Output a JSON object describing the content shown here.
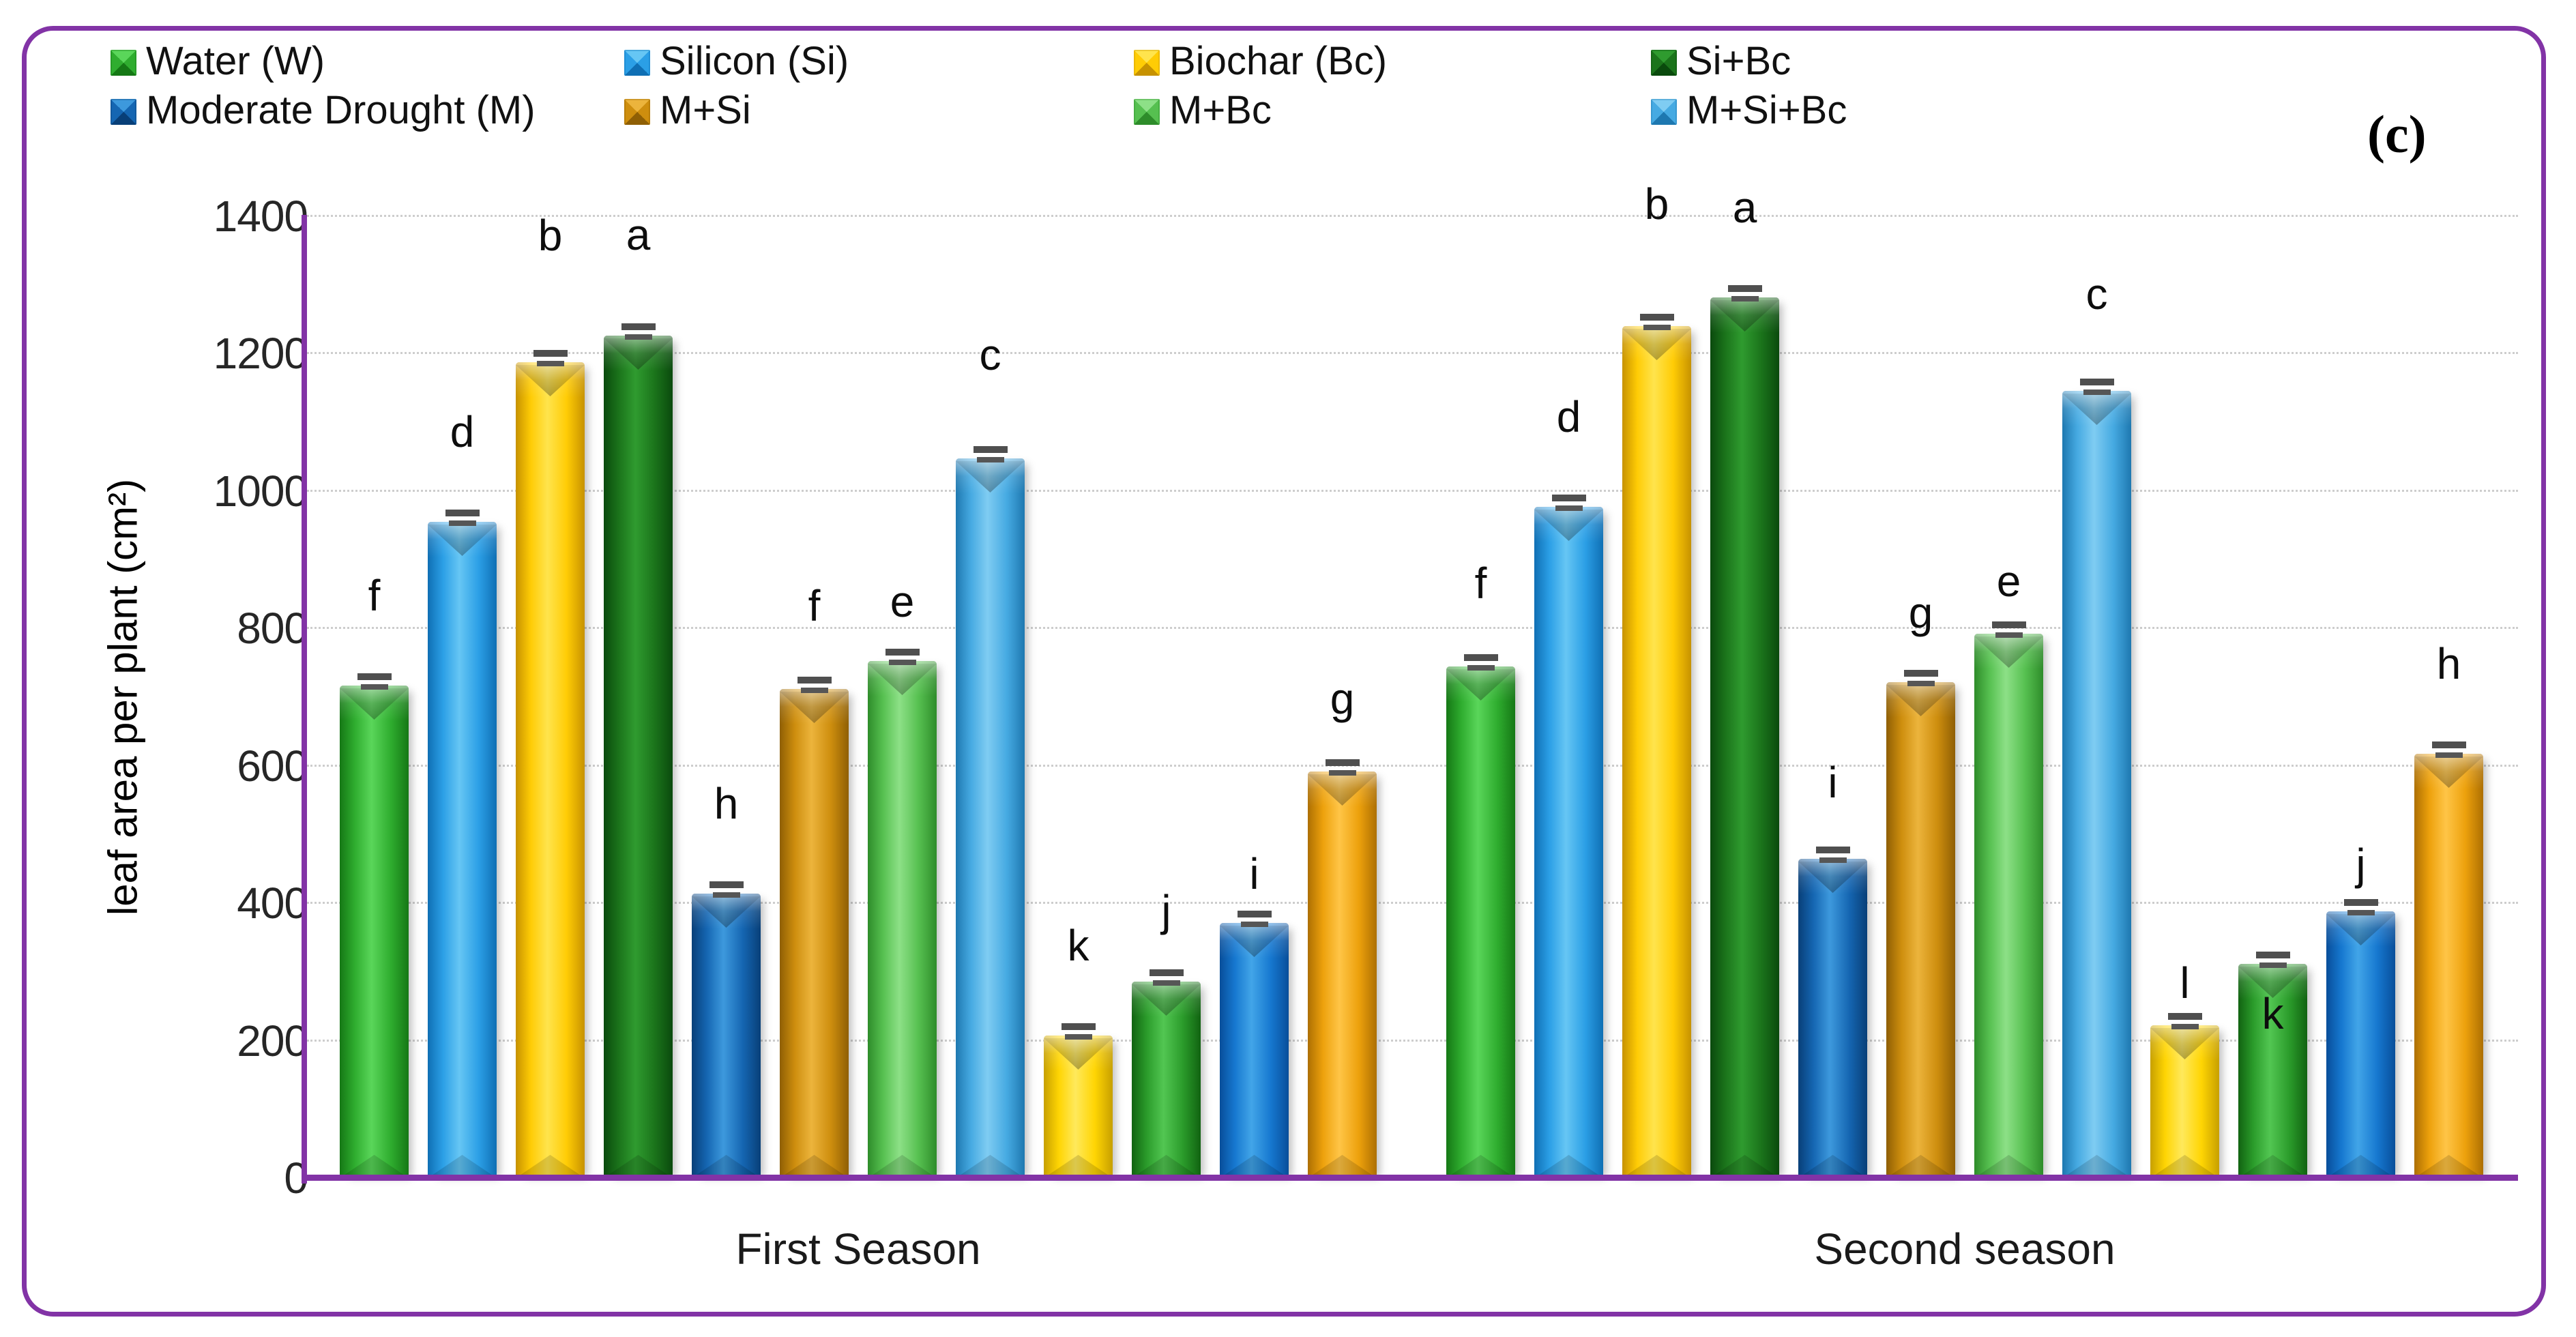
{
  "figure_label": "(c)",
  "legend": {
    "items": [
      {
        "label": "Water (W)",
        "color_key": "green"
      },
      {
        "label": "Silicon (Si)",
        "color_key": "blue"
      },
      {
        "label": "Biochar (Bc)",
        "color_key": "gold"
      },
      {
        "label": "Si+Bc",
        "color_key": "darkgreen"
      },
      {
        "label": "Moderate Drought (M)",
        "color_key": "darkblue"
      },
      {
        "label": "M+Si",
        "color_key": "bronze"
      },
      {
        "label": "M+Bc",
        "color_key": "lightgreen"
      },
      {
        "label": "M+Si+Bc",
        "color_key": "skyblue"
      }
    ]
  },
  "colors": {
    "frame": "#8233a6",
    "axis": "#8233a6",
    "gridline": "#cdcdcd",
    "error_bar": "#4f4f4f",
    "palette": {
      "green": {
        "base": "#2fad2f",
        "light": "#5ad65a",
        "dark": "#157815"
      },
      "blue": {
        "base": "#2b9fe6",
        "light": "#66c6f4",
        "dark": "#0f6fb4"
      },
      "gold": {
        "base": "#ffcc05",
        "light": "#ffe44d",
        "dark": "#c79200"
      },
      "darkgreen": {
        "base": "#1b741b",
        "light": "#2f9b2f",
        "dark": "#0a4a0d"
      },
      "darkblue": {
        "base": "#1566b2",
        "light": "#3d99dd",
        "dark": "#083f78"
      },
      "bronze": {
        "base": "#ce8e0e",
        "light": "#ecb43c",
        "dark": "#8f5f04"
      },
      "lightgreen": {
        "base": "#56c050",
        "light": "#8de087",
        "dark": "#2e8c2a"
      },
      "skyblue": {
        "base": "#46aae2",
        "light": "#7fccf2",
        "dark": "#1e78b0"
      },
      "yellow2": {
        "base": "#ffd503",
        "light": "#ffe95c",
        "dark": "#c7a000"
      },
      "green2": {
        "base": "#2b9c2b",
        "light": "#52c652",
        "dark": "#116311"
      },
      "blue2": {
        "base": "#1678d0",
        "light": "#42a5e8",
        "dark": "#084e9a"
      },
      "orange2": {
        "base": "#eda10c",
        "light": "#ffc547",
        "dark": "#ad6f02"
      }
    }
  },
  "chart_data": {
    "type": "bar",
    "title": "",
    "xlabel": "",
    "ylabel": "leaf area per plant (cm²)",
    "ylim": [
      0,
      1400
    ],
    "ytick_step": 200,
    "yticks": [
      "0",
      "200",
      "400",
      "600",
      "800",
      "1000",
      "1200",
      "1400"
    ],
    "grid": "horizontal dotted lines, on",
    "legend_position": "top-left, two rows, four columns",
    "error_bars": true,
    "categories": [
      "First Season",
      "Second season"
    ],
    "groups": [
      {
        "category": "First Season",
        "bars": [
          {
            "color_key": "green",
            "value": 717,
            "letter": "f"
          },
          {
            "color_key": "blue",
            "value": 955,
            "letter": "d"
          },
          {
            "color_key": "gold",
            "value": 1188,
            "letter": "b",
            "dy": -54
          },
          {
            "color_key": "darkgreen",
            "value": 1226,
            "letter": "a",
            "dy": -16
          },
          {
            "color_key": "darkblue",
            "value": 414,
            "letter": "h"
          },
          {
            "color_key": "bronze",
            "value": 712,
            "letter": "f",
            "dy": 10
          },
          {
            "color_key": "lightgreen",
            "value": 753,
            "letter": "e",
            "dy": 45
          },
          {
            "color_key": "skyblue",
            "value": 1048,
            "letter": "c",
            "dy": -20
          },
          {
            "color_key": "yellow2",
            "value": 208,
            "letter": "k"
          },
          {
            "color_key": "green2",
            "value": 286,
            "letter": "j",
            "dy": 28
          },
          {
            "color_key": "blue2",
            "value": 371,
            "letter": "i",
            "dy": 60
          },
          {
            "color_key": "orange2",
            "value": 592,
            "letter": "g",
            "dy": 25
          }
        ]
      },
      {
        "category": "Second season",
        "bars": [
          {
            "color_key": "green",
            "value": 745,
            "letter": "f",
            "dy": 10
          },
          {
            "color_key": "blue",
            "value": 977,
            "letter": "d"
          },
          {
            "color_key": "gold",
            "value": 1240,
            "letter": "b",
            "dy": -47
          },
          {
            "color_key": "darkgreen",
            "value": 1282,
            "letter": "a"
          },
          {
            "color_key": "darkblue",
            "value": 465,
            "letter": "i",
            "dy": 20
          },
          {
            "color_key": "bronze",
            "value": 722,
            "letter": "g",
            "dy": 30
          },
          {
            "color_key": "lightgreen",
            "value": 792,
            "letter": "e",
            "dy": 55
          },
          {
            "color_key": "skyblue",
            "value": 1146,
            "letter": "c",
            "dy": -10
          },
          {
            "color_key": "yellow2",
            "value": 222,
            "letter": "l",
            "dy": 70
          },
          {
            "color_key": "green2",
            "value": 312,
            "letter": "k",
            "dy": 205
          },
          {
            "color_key": "blue2",
            "value": 388,
            "letter": "j",
            "dy": 63
          },
          {
            "color_key": "orange2",
            "value": 618,
            "letter": "h"
          }
        ]
      }
    ]
  }
}
